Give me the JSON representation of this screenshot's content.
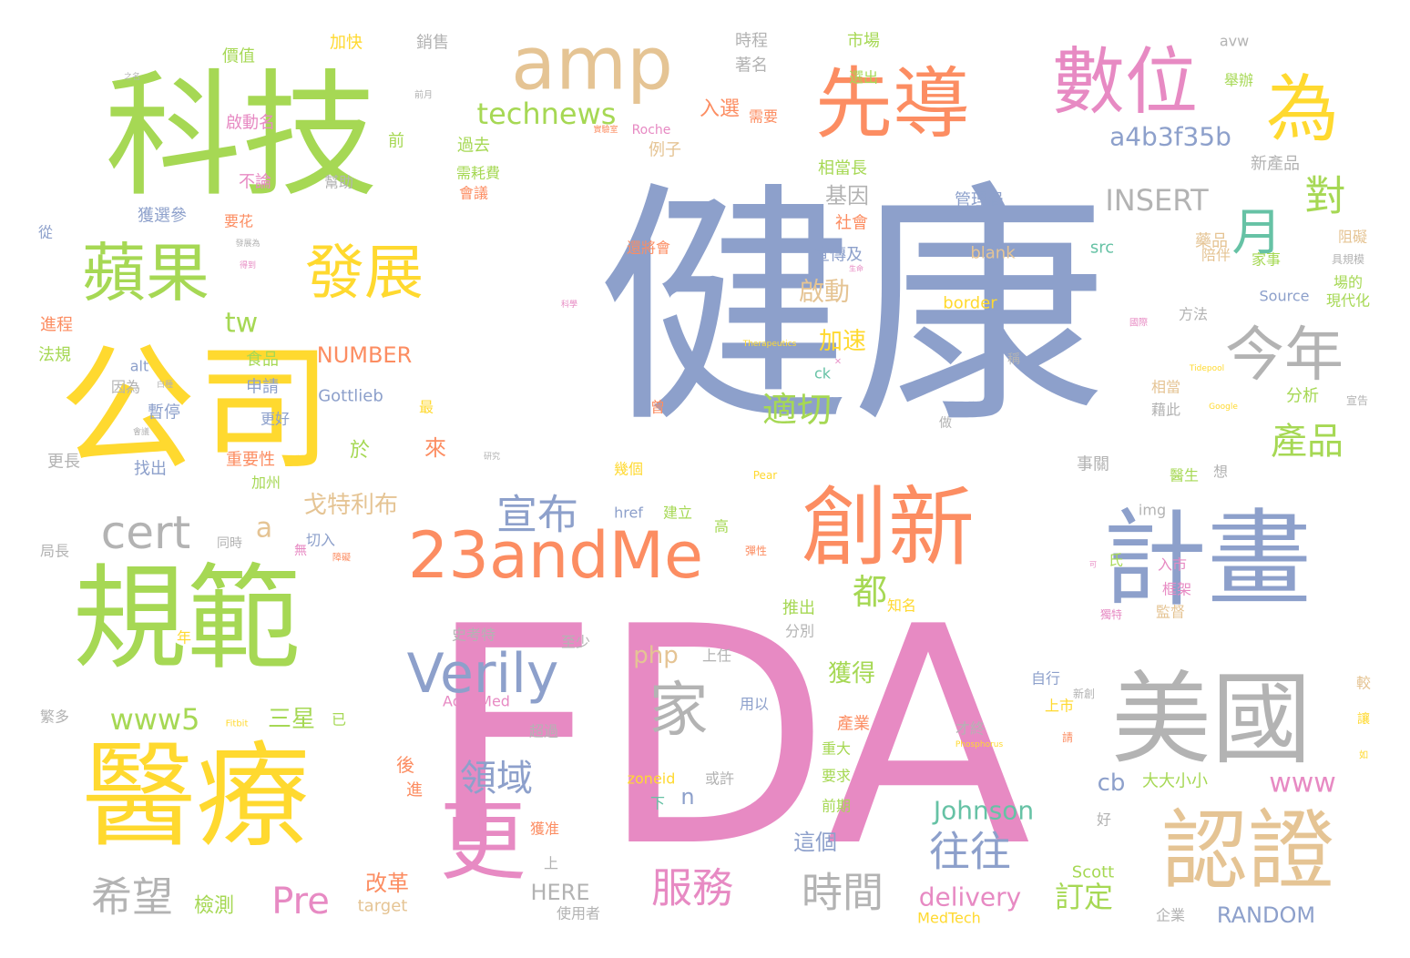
{
  "palette": {
    "green": "#a6d854",
    "blue": "#8da0cb",
    "pink": "#e78ac3",
    "orange": "#fc8d62",
    "yellow": "#ffd92f",
    "tan": "#e5c494",
    "gray": "#b3b3b3",
    "teal": "#66c2a5"
  },
  "words": [
    {
      "text": "健康",
      "color": "blue"
    },
    {
      "text": "FDA",
      "color": "pink"
    },
    {
      "text": "科技",
      "color": "green"
    },
    {
      "text": "公司",
      "color": "yellow"
    },
    {
      "text": "規範",
      "color": "green"
    },
    {
      "text": "醫療",
      "color": "yellow"
    },
    {
      "text": "計畫",
      "color": "blue"
    },
    {
      "text": "美國",
      "color": "gray"
    },
    {
      "text": "認證",
      "color": "tan"
    },
    {
      "text": "創新",
      "color": "orange"
    },
    {
      "text": "先導",
      "color": "orange"
    },
    {
      "text": "數位",
      "color": "pink"
    },
    {
      "text": "amp",
      "color": "tan"
    },
    {
      "text": "為",
      "color": "yellow"
    },
    {
      "text": "更",
      "color": "pink"
    },
    {
      "text": "23andMe",
      "color": "orange"
    },
    {
      "text": "蘋果",
      "color": "green"
    },
    {
      "text": "發展",
      "color": "yellow"
    },
    {
      "text": "今年",
      "color": "gray"
    },
    {
      "text": "月",
      "color": "teal"
    },
    {
      "text": "家",
      "color": "gray"
    },
    {
      "text": "Verily",
      "color": "blue"
    },
    {
      "text": "對",
      "color": "green"
    },
    {
      "text": "產品",
      "color": "green"
    },
    {
      "text": "宣布",
      "color": "blue"
    },
    {
      "text": "往往",
      "color": "blue"
    },
    {
      "text": "時間",
      "color": "gray"
    },
    {
      "text": "服務",
      "color": "pink"
    },
    {
      "text": "希望",
      "color": "gray"
    },
    {
      "text": "領域",
      "color": "blue"
    },
    {
      "text": "cert",
      "color": "gray"
    },
    {
      "text": "適切",
      "color": "green"
    },
    {
      "text": "Pre",
      "color": "pink"
    },
    {
      "text": "都",
      "color": "green"
    },
    {
      "text": "technews",
      "color": "green"
    },
    {
      "text": "a4b3f35b",
      "color": "blue"
    },
    {
      "text": "www5",
      "color": "green"
    },
    {
      "text": "INSERT",
      "color": "gray"
    },
    {
      "text": "www",
      "color": "pink"
    },
    {
      "text": "Johnson",
      "color": "teal"
    },
    {
      "text": "delivery",
      "color": "pink"
    },
    {
      "text": "RANDOM",
      "color": "blue"
    },
    {
      "text": "訂定",
      "color": "green"
    },
    {
      "text": "啟動",
      "color": "tan"
    },
    {
      "text": "加速",
      "color": "yellow"
    },
    {
      "text": "獲得",
      "color": "green"
    },
    {
      "text": "php",
      "color": "tan"
    },
    {
      "text": "戈特利布",
      "color": "tan"
    },
    {
      "text": "三星",
      "color": "green"
    },
    {
      "text": "NUMBER",
      "color": "orange"
    },
    {
      "text": "Gottlieb",
      "color": "blue"
    },
    {
      "text": "tw",
      "color": "green"
    },
    {
      "text": "a",
      "color": "tan"
    },
    {
      "text": "cb",
      "color": "blue"
    },
    {
      "text": "n",
      "color": "blue"
    },
    {
      "text": "改革",
      "color": "orange"
    },
    {
      "text": "檢測",
      "color": "green"
    },
    {
      "text": "HERE",
      "color": "gray"
    },
    {
      "text": "target",
      "color": "tan"
    },
    {
      "text": "入選",
      "color": "orange"
    },
    {
      "text": "基因",
      "color": "gray"
    },
    {
      "text": "過去",
      "color": "green"
    },
    {
      "text": "前",
      "color": "green"
    },
    {
      "text": "例子",
      "color": "tan"
    },
    {
      "text": "相當長",
      "color": "green"
    },
    {
      "text": "管理局",
      "color": "blue"
    },
    {
      "text": "新產品",
      "color": "gray"
    },
    {
      "text": "藥品",
      "color": "tan"
    },
    {
      "text": "宣傳及",
      "color": "blue"
    },
    {
      "text": "社會",
      "color": "orange"
    },
    {
      "text": "blank",
      "color": "tan"
    },
    {
      "text": "src",
      "color": "teal"
    },
    {
      "text": "border",
      "color": "yellow"
    },
    {
      "text": "Source",
      "color": "blue"
    },
    {
      "text": "現代化",
      "color": "green"
    },
    {
      "text": "家事",
      "color": "green"
    },
    {
      "text": "陪伴",
      "color": "tan"
    },
    {
      "text": "阻礙",
      "color": "tan"
    },
    {
      "text": "場的",
      "color": "green"
    },
    {
      "text": "方法",
      "color": "gray"
    },
    {
      "text": "分析",
      "color": "green"
    },
    {
      "text": "相當",
      "color": "tan"
    },
    {
      "text": "藉此",
      "color": "gray"
    },
    {
      "text": "事關",
      "color": "gray"
    },
    {
      "text": "醫生",
      "color": "green"
    },
    {
      "text": "想",
      "color": "gray"
    },
    {
      "text": "img",
      "color": "gray"
    },
    {
      "text": "入市",
      "color": "pink"
    },
    {
      "text": "框架",
      "color": "pink"
    },
    {
      "text": "監督",
      "color": "tan"
    },
    {
      "text": "氏",
      "color": "green"
    },
    {
      "text": "自行",
      "color": "blue"
    },
    {
      "text": "上市",
      "color": "yellow"
    },
    {
      "text": "大大小小",
      "color": "green"
    },
    {
      "text": "Scott",
      "color": "green"
    },
    {
      "text": "MedTech",
      "color": "yellow"
    },
    {
      "text": "企業",
      "color": "gray"
    },
    {
      "text": "好",
      "color": "gray"
    },
    {
      "text": "才終",
      "color": "gray"
    },
    {
      "text": "產業",
      "color": "orange"
    },
    {
      "text": "重大",
      "color": "green"
    },
    {
      "text": "要求",
      "color": "green"
    },
    {
      "text": "前期",
      "color": "green"
    },
    {
      "text": "這個",
      "color": "blue"
    },
    {
      "text": "或許",
      "color": "gray"
    },
    {
      "text": "zoneid",
      "color": "yellow"
    },
    {
      "text": "下",
      "color": "teal"
    },
    {
      "text": "用以",
      "color": "blue"
    },
    {
      "text": "上任",
      "color": "gray"
    },
    {
      "text": "href",
      "color": "blue"
    },
    {
      "text": "建立",
      "color": "green"
    },
    {
      "text": "高",
      "color": "green"
    },
    {
      "text": "幾個",
      "color": "yellow"
    },
    {
      "text": "AdvaMed",
      "color": "pink"
    },
    {
      "text": "超過",
      "color": "gray"
    },
    {
      "text": "史考特",
      "color": "gray"
    },
    {
      "text": "至少",
      "color": "gray"
    },
    {
      "text": "推出",
      "color": "green"
    },
    {
      "text": "分別",
      "color": "gray"
    },
    {
      "text": "知名",
      "color": "yellow"
    },
    {
      "text": "後",
      "color": "orange"
    },
    {
      "text": "進",
      "color": "orange"
    },
    {
      "text": "獲准",
      "color": "orange"
    },
    {
      "text": "上",
      "color": "gray"
    },
    {
      "text": "使用者",
      "color": "gray"
    },
    {
      "text": "時程",
      "color": "gray"
    },
    {
      "text": "著名",
      "color": "gray"
    },
    {
      "text": "市場",
      "color": "green"
    },
    {
      "text": "選出",
      "color": "green"
    },
    {
      "text": "avw",
      "color": "gray"
    },
    {
      "text": "舉辦",
      "color": "green"
    },
    {
      "text": "需要",
      "color": "orange"
    },
    {
      "text": "Roche",
      "color": "pink"
    },
    {
      "text": "價值",
      "color": "green"
    },
    {
      "text": "加快",
      "color": "yellow"
    },
    {
      "text": "銷售",
      "color": "gray"
    },
    {
      "text": "啟動名",
      "color": "pink"
    },
    {
      "text": "不論",
      "color": "pink"
    },
    {
      "text": "幫助",
      "color": "gray"
    },
    {
      "text": "獲選參",
      "color": "blue"
    },
    {
      "text": "要花",
      "color": "orange"
    },
    {
      "text": "需耗費",
      "color": "green"
    },
    {
      "text": "會議",
      "color": "orange"
    },
    {
      "text": "還將會",
      "color": "orange"
    },
    {
      "text": "進程",
      "color": "orange"
    },
    {
      "text": "法規",
      "color": "green"
    },
    {
      "text": "食品",
      "color": "green"
    },
    {
      "text": "申請",
      "color": "blue"
    },
    {
      "text": "alt",
      "color": "blue"
    },
    {
      "text": "ck",
      "color": "teal"
    },
    {
      "text": "因為",
      "color": "gray"
    },
    {
      "text": "暫停",
      "color": "blue"
    },
    {
      "text": "更好",
      "color": "blue"
    },
    {
      "text": "最",
      "color": "yellow"
    },
    {
      "text": "來",
      "color": "orange"
    },
    {
      "text": "於",
      "color": "green"
    },
    {
      "text": "更長",
      "color": "gray"
    },
    {
      "text": "找出",
      "color": "blue"
    },
    {
      "text": "重要性",
      "color": "orange"
    },
    {
      "text": "加州",
      "color": "green"
    },
    {
      "text": "局長",
      "color": "gray"
    },
    {
      "text": "同時",
      "color": "gray"
    },
    {
      "text": "切入",
      "color": "blue"
    },
    {
      "text": "無",
      "color": "pink"
    },
    {
      "text": "年",
      "color": "yellow"
    },
    {
      "text": "已",
      "color": "green"
    },
    {
      "text": "繁多",
      "color": "gray"
    },
    {
      "text": "從",
      "color": "blue"
    },
    {
      "text": "稱",
      "color": "gray"
    },
    {
      "text": "做",
      "color": "gray"
    },
    {
      "text": "曾",
      "color": "orange"
    },
    {
      "text": "較",
      "color": "tan"
    },
    {
      "text": "宣告",
      "color": "gray"
    },
    {
      "text": "讓",
      "color": "yellow"
    },
    {
      "text": "請",
      "color": "orange"
    },
    {
      "text": "Pear",
      "color": "yellow"
    },
    {
      "text": "Tidepool",
      "color": "yellow"
    },
    {
      "text": "Therapeutics",
      "color": "yellow"
    },
    {
      "text": "Phosphorus",
      "color": "yellow"
    },
    {
      "text": "Google",
      "color": "yellow"
    },
    {
      "text": "Fitbit",
      "color": "yellow"
    },
    {
      "text": "國際",
      "color": "pink"
    },
    {
      "text": "具規模",
      "color": "gray"
    },
    {
      "text": "新創",
      "color": "gray"
    },
    {
      "text": "彈性",
      "color": "orange"
    },
    {
      "text": "障礙",
      "color": "orange"
    },
    {
      "text": "×",
      "color": "pink"
    },
    {
      "text": "之名",
      "color": "gray"
    },
    {
      "text": "前月",
      "color": "gray"
    },
    {
      "text": "實驗室",
      "color": "orange"
    },
    {
      "text": "發展為",
      "color": "gray"
    },
    {
      "text": "得到",
      "color": "pink"
    },
    {
      "text": "白種",
      "color": "gray"
    },
    {
      "text": "會議",
      "color": "gray"
    },
    {
      "text": "研究",
      "color": "gray"
    },
    {
      "text": "科學",
      "color": "pink"
    },
    {
      "text": "生命",
      "color": "pink"
    },
    {
      "text": "獨特",
      "color": "pink"
    },
    {
      "text": "如",
      "color": "yellow"
    },
    {
      "text": "可",
      "color": "pink"
    }
  ]
}
